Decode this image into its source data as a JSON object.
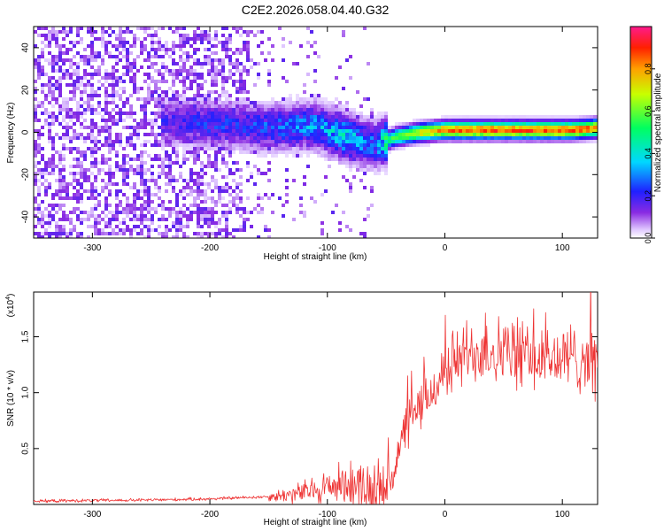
{
  "title": "C2E2.2026.058.04.40.G32",
  "chart_data": [
    {
      "type": "heatmap",
      "name": "spectrogram",
      "xlabel": "Height of straight line (km)",
      "ylabel": "Frequency (Hz)",
      "xlim": [
        -350,
        130
      ],
      "ylim": [
        -50,
        50
      ],
      "xticks": [
        -300,
        -200,
        -100,
        0,
        100
      ],
      "yticks": [
        -40,
        -20,
        0,
        20,
        40
      ],
      "colorbar": {
        "label": "Normalized spectral amplitude",
        "range": [
          0,
          1
        ],
        "ticks": [
          0.0,
          0.2,
          0.4,
          0.6,
          0.8
        ],
        "tick_labels": [
          "0.0",
          "0.2",
          "0.4",
          "0.6",
          "0.8"
        ]
      },
      "ridge": {
        "x": [
          -230,
          -200,
          -170,
          -150,
          -130,
          -110,
          -100,
          -90,
          -80,
          -70,
          -60,
          -50,
          -40,
          -20,
          0,
          20,
          50,
          80,
          110,
          130
        ],
        "freq": [
          5,
          4,
          3,
          2,
          3,
          3,
          1,
          -1,
          -3,
          -5,
          -6,
          -4,
          -2,
          0,
          1,
          1,
          1,
          1,
          1,
          2
        ],
        "amplitude": [
          0.2,
          0.25,
          0.25,
          0.28,
          0.3,
          0.35,
          0.35,
          0.45,
          0.4,
          0.35,
          0.3,
          0.5,
          0.6,
          0.75,
          0.85,
          0.88,
          0.9,
          0.9,
          0.9,
          0.85
        ]
      }
    },
    {
      "type": "line",
      "name": "snr",
      "xlabel": "Height of straight line (km)",
      "ylabel": "SNR (10 * v/v)",
      "yscale_label": "(x10",
      "yscale_exponent": "4",
      "xlim": [
        -350,
        130
      ],
      "ylim": [
        0,
        1.9
      ],
      "xticks": [
        -300,
        -200,
        -100,
        0,
        100
      ],
      "yticks": [
        0.5,
        1.0,
        1.5
      ],
      "ytick_labels": [
        "0.5",
        "1.0",
        "1.5"
      ],
      "color": "#ee3333",
      "series": [
        {
          "name": "SNR",
          "x": [
            -350,
            -300,
            -250,
            -200,
            -150,
            -130,
            -110,
            -100,
            -90,
            -80,
            -70,
            -60,
            -50,
            -45,
            -40,
            -35,
            -30,
            -25,
            -20,
            -15,
            -10,
            -5,
            0,
            10,
            20,
            30,
            40,
            60,
            80,
            100,
            120,
            130
          ],
          "y": [
            0.03,
            0.035,
            0.04,
            0.05,
            0.07,
            0.09,
            0.13,
            0.16,
            0.18,
            0.2,
            0.17,
            0.12,
            0.15,
            0.25,
            0.45,
            0.62,
            0.75,
            0.82,
            0.88,
            0.95,
            1.02,
            1.1,
            1.2,
            1.3,
            1.35,
            1.38,
            1.38,
            1.35,
            1.3,
            1.3,
            1.32,
            1.25
          ]
        }
      ]
    }
  ]
}
